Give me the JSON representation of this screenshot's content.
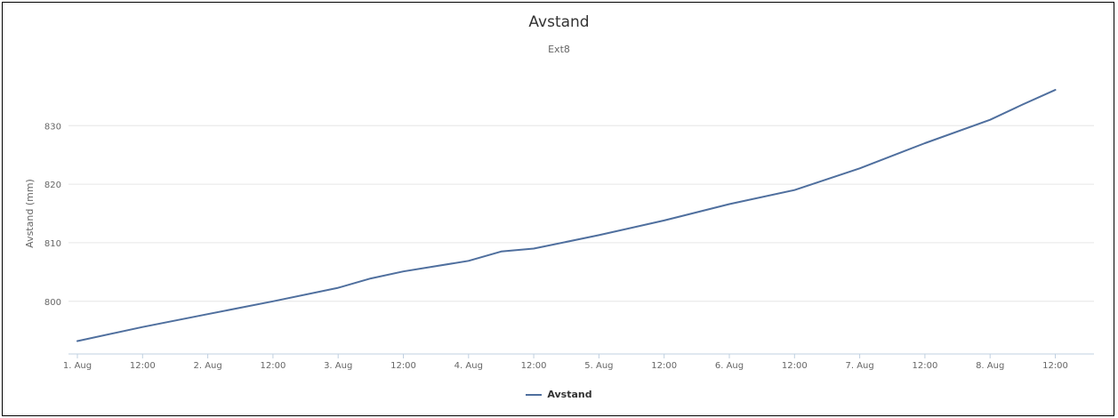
{
  "chart_data": {
    "type": "line",
    "title": "Avstand",
    "subtitle": "Ext8",
    "xlabel": "",
    "ylabel": "Avstand (mm)",
    "x_ticks": [
      "1. Aug",
      "12:00",
      "2. Aug",
      "12:00",
      "3. Aug",
      "12:00",
      "4. Aug",
      "12:00",
      "5. Aug",
      "12:00",
      "6. Aug",
      "12:00",
      "7. Aug",
      "12:00",
      "8. Aug",
      "12:00"
    ],
    "y_ticks": [
      800,
      810,
      820,
      830
    ],
    "ylim": [
      791,
      839
    ],
    "x_step_hours": 12,
    "grid": true,
    "legend_position": "bottom-center",
    "series": [
      {
        "name": "Avstand",
        "color": "#4f6f9e",
        "x": [
          "1. Aug 00:00",
          "1. Aug 12:00",
          "2. Aug 00:00",
          "2. Aug 12:00",
          "3. Aug 00:00",
          "3. Aug 06:00",
          "3. Aug 12:00",
          "4. Aug 00:00",
          "4. Aug 06:00",
          "4. Aug 12:00",
          "5. Aug 00:00",
          "5. Aug 12:00",
          "6. Aug 00:00",
          "6. Aug 12:00",
          "7. Aug 00:00",
          "7. Aug 12:00",
          "8. Aug 00:00",
          "8. Aug 06:00",
          "8. Aug 12:00"
        ],
        "values": [
          793.2,
          795.6,
          797.8,
          800.0,
          802.3,
          803.9,
          805.1,
          806.9,
          808.5,
          809.0,
          811.3,
          813.8,
          816.6,
          819.0,
          822.7,
          827.0,
          831.0,
          833.6,
          836.1
        ]
      }
    ]
  }
}
